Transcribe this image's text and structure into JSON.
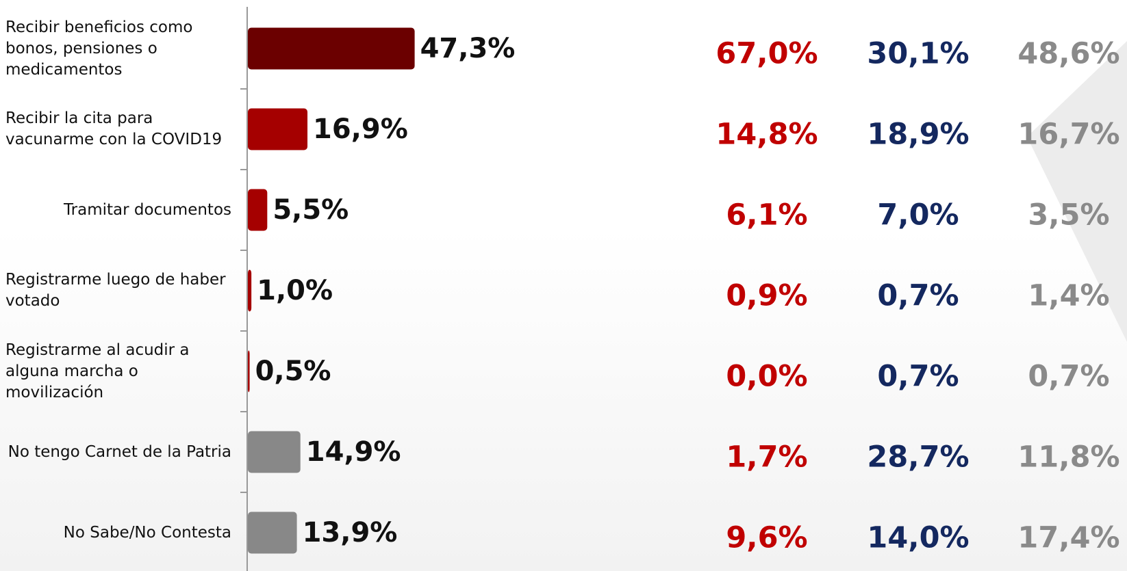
{
  "chart_data": {
    "type": "bar",
    "categories": [
      "Recibir beneficios como bonos, pensiones o medicamentos",
      "Recibir la cita para vacunarme con la COVID19",
      "Tramitar documentos",
      "Registrarme luego de haber votado",
      "Registrarme al acudir a alguna marcha o movilización",
      "No tengo Carnet de la Patria",
      "No Sabe/No Contesta"
    ],
    "values": [
      47.3,
      16.9,
      5.5,
      1.0,
      0.5,
      14.9,
      13.9
    ],
    "value_labels": [
      "47,3%",
      "16,9%",
      "5,5%",
      "1,0%",
      "0,5%",
      "14,9%",
      "13,9%"
    ],
    "colors": [
      "#6b0000",
      "#a50000",
      "#a50000",
      "#a50000",
      "#a50000",
      "#888888",
      "#888888"
    ]
  },
  "table": {
    "columns": [
      {
        "color": "#c00000",
        "values": [
          67.0,
          14.8,
          6.1,
          0.9,
          0.0,
          1.7,
          9.6
        ],
        "value_labels": [
          "67,0%",
          "14,8%",
          "6,1%",
          "0,9%",
          "0,0%",
          "1,7%",
          "9,6%"
        ]
      },
      {
        "color": "#14285f",
        "values": [
          30.1,
          18.9,
          7.0,
          0.7,
          0.7,
          28.7,
          14.0
        ],
        "value_labels": [
          "30,1%",
          "18,9%",
          "7,0%",
          "0,7%",
          "0,7%",
          "28,7%",
          "14,0%"
        ]
      },
      {
        "color": "#8a8a8a",
        "values": [
          48.6,
          16.7,
          3.5,
          1.4,
          0.7,
          11.8,
          17.4
        ],
        "value_labels": [
          "48,6%",
          "16,7%",
          "3,5%",
          "1,4%",
          "0,7%",
          "11,8%",
          "17,4%"
        ]
      }
    ]
  }
}
